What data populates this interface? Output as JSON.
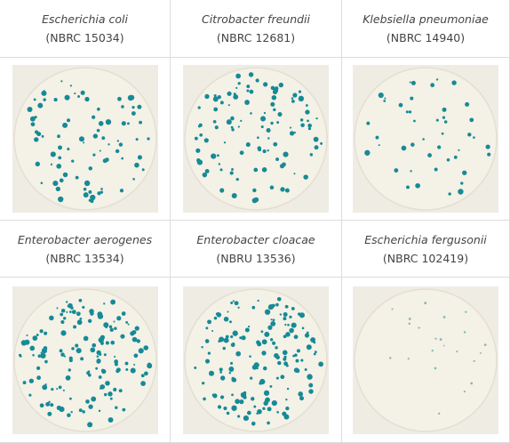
{
  "plates": [
    {
      "species": "Escherichia coli",
      "strain": "(NBRC 15034)"
    },
    {
      "species": "Citrobacter freundii",
      "strain": "(NBRC 12681)"
    },
    {
      "species": "Klebsiella pneumoniae",
      "strain": "(NBRC 14940)"
    },
    {
      "species": "Enterobacter aerogenes",
      "strain": "(NBRC 13534)"
    },
    {
      "species": "Enterobacter cloacae",
      "strain": "(NBRU 13536)"
    },
    {
      "species": "Escherichia fergusonii",
      "strain": "(NBRC 102419)"
    }
  ]
}
